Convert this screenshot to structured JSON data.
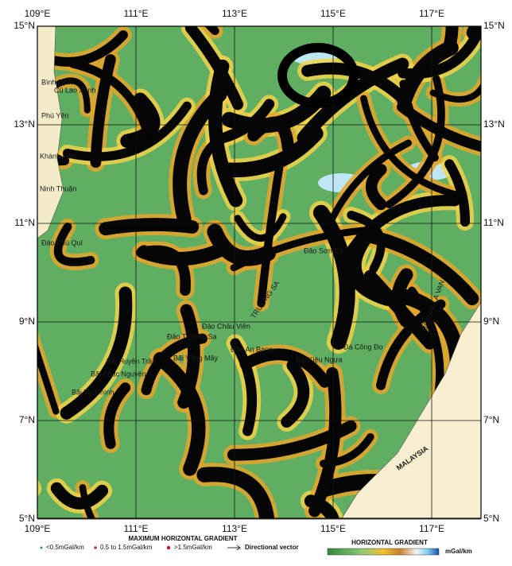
{
  "map": {
    "lon_labels": [
      "109°E",
      "111°E",
      "113°E",
      "115°E",
      "117°E"
    ],
    "lat_labels": [
      "15°N",
      "13°N",
      "11°N",
      "9°N",
      "7°N",
      "5°N"
    ],
    "places": [
      "Bình Định",
      "Cù Lao Xanh",
      "Phú Yên",
      "Khánh Hòa",
      "Ninh Thuận",
      "Đảo Phú Quí",
      "Đảo Sơn Ca",
      "Đảo Châu Viên",
      "Đảo Trường Sa",
      "Bãi Huyền Trân",
      "Bãi Phúc Nguyên",
      "Bãi Tư Chính",
      "Bãi Vũng Mây",
      "Đảo An Bang",
      "Bãi Kiệu Ngựa",
      "Đá Công Đo",
      "TRƯỜNG SA",
      "BỒN PÀ LA VAN",
      "MALAYSIA"
    ]
  },
  "legend": {
    "title": "MAXIMUM HORIZONTAL GRADIENT",
    "items": [
      "<0.5mGal/km",
      "0.5 to 1.5mGal/km",
      ">1.5mGal/km",
      "Directional vector"
    ],
    "colorbar_title": "HORIZONTAL GRADIENT",
    "colorbar_unit": "mGal/km"
  }
}
